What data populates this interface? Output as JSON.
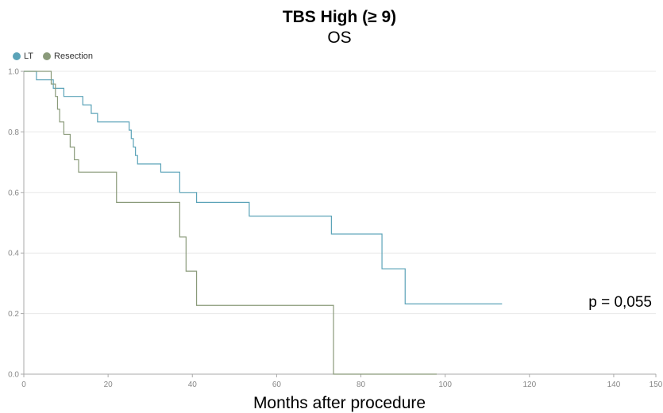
{
  "chart_data": {
    "type": "line",
    "step": true,
    "title": "TBS High (≥ 9)",
    "subtitle": "OS",
    "xlabel": "Months after procedure",
    "ylabel": "",
    "xlim": [
      0,
      150
    ],
    "ylim": [
      0,
      1.0
    ],
    "xticks": [
      0,
      20,
      40,
      60,
      80,
      100,
      120,
      140,
      150
    ],
    "yticks": [
      0.0,
      0.2,
      0.4,
      0.6,
      0.8,
      1.0
    ],
    "ytick_labels": [
      "0.0",
      "0.2",
      "0.4",
      "0.6",
      "0.8",
      "1.0"
    ],
    "grid": true,
    "legend_position": "top-left",
    "annotation": "p = 0,055",
    "series": [
      {
        "name": "LT",
        "color": "#5ba3b8",
        "x": [
          0,
          3,
          7,
          9.5,
          14,
          16,
          17.5,
          25,
          25.5,
          26,
          26.5,
          27,
          32.5,
          37,
          41,
          53.5,
          73,
          85,
          90.5,
          113.5
        ],
        "y": [
          1.0,
          0.972,
          0.944,
          0.917,
          0.889,
          0.861,
          0.833,
          0.806,
          0.778,
          0.75,
          0.722,
          0.694,
          0.667,
          0.6,
          0.567,
          0.522,
          0.463,
          0.348,
          0.232,
          0.232
        ]
      },
      {
        "name": "Resection",
        "color": "#8a9a7a",
        "x": [
          0,
          6.5,
          7.5,
          8,
          8.5,
          9.5,
          11,
          12,
          13,
          22,
          37,
          38.5,
          41,
          73,
          73.5,
          98
        ],
        "y": [
          1.0,
          0.958,
          0.917,
          0.875,
          0.833,
          0.792,
          0.75,
          0.708,
          0.667,
          0.567,
          0.453,
          0.34,
          0.227,
          0.227,
          0.0,
          0.0
        ]
      }
    ]
  }
}
